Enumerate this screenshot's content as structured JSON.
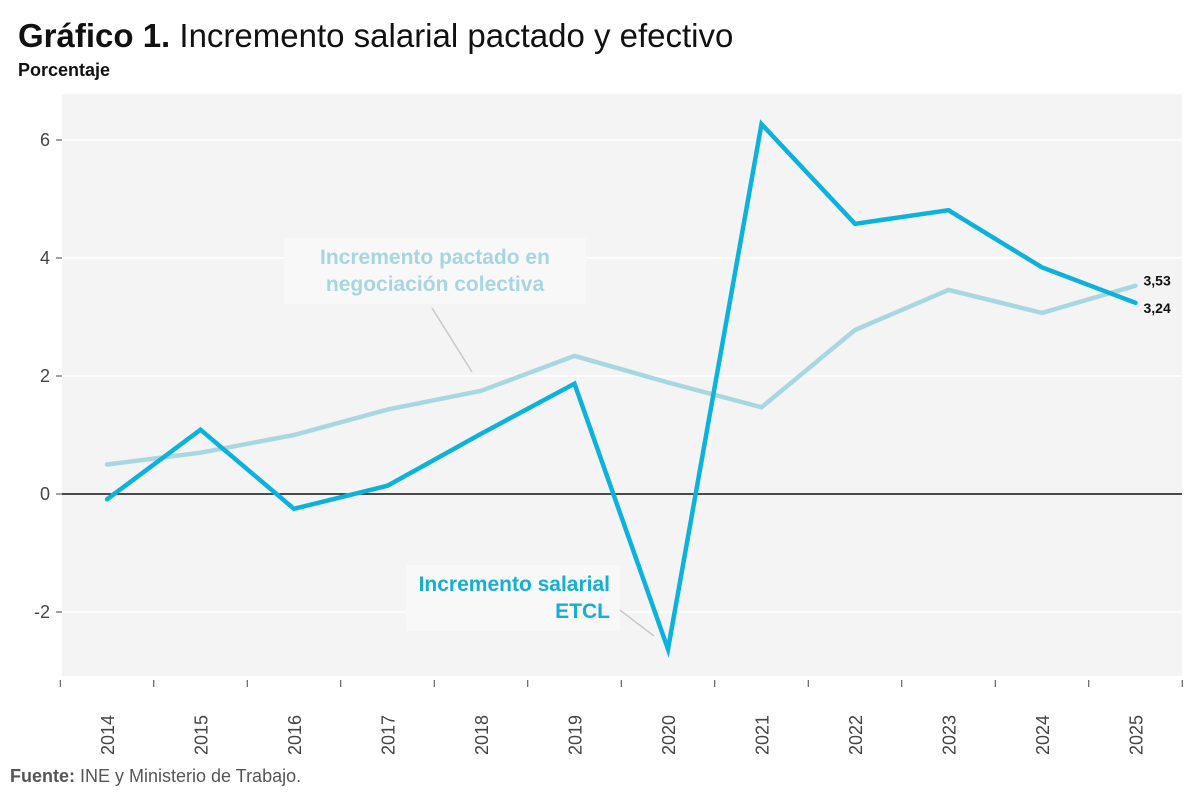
{
  "header": {
    "title_bold": "Gráfico 1.",
    "title_rest": "Incremento salarial pactado y efectivo",
    "subtitle": "Porcentaje"
  },
  "annotations": {
    "pactado": "Incremento pactado en negociación colectiva",
    "etcl": "Incremento salarial ETCL"
  },
  "source": {
    "label": "Fuente:",
    "text": "INE y Ministerio de Trabajo."
  },
  "colors": {
    "etcl": "#0db2dc",
    "pactado": "#a9d7e1",
    "plot_bg": "#f4f4f4",
    "grid": "#ffffff",
    "zero": "#111111"
  },
  "chart_data": {
    "type": "line",
    "title": "Incremento salarial pactado y efectivo",
    "ylabel": "Porcentaje",
    "xlabel": "",
    "ylim": [
      -3.1,
      6.7
    ],
    "yticks": [
      -2,
      0,
      2,
      4,
      6
    ],
    "ytick_labels": [
      "-2",
      "0",
      "2",
      "4",
      "6"
    ],
    "categories": [
      "2014",
      "2015",
      "2016",
      "2017",
      "2018",
      "2019",
      "2020",
      "2021",
      "2022",
      "2023",
      "2024",
      "2025"
    ],
    "series": [
      {
        "name": "Incremento salarial ETCL",
        "values": [
          -0.09,
          1.09,
          -0.25,
          0.14,
          1.02,
          1.87,
          -2.63,
          6.27,
          4.58,
          4.81,
          3.84,
          3.24
        ],
        "end_label": "3,24"
      },
      {
        "name": "Incremento pactado en negociación colectiva",
        "values": [
          0.5,
          0.7,
          1.0,
          1.43,
          1.75,
          2.34,
          1.89,
          1.47,
          2.78,
          3.46,
          3.07,
          3.53
        ],
        "end_label": "3,53"
      }
    ],
    "legend": "inline annotations"
  }
}
